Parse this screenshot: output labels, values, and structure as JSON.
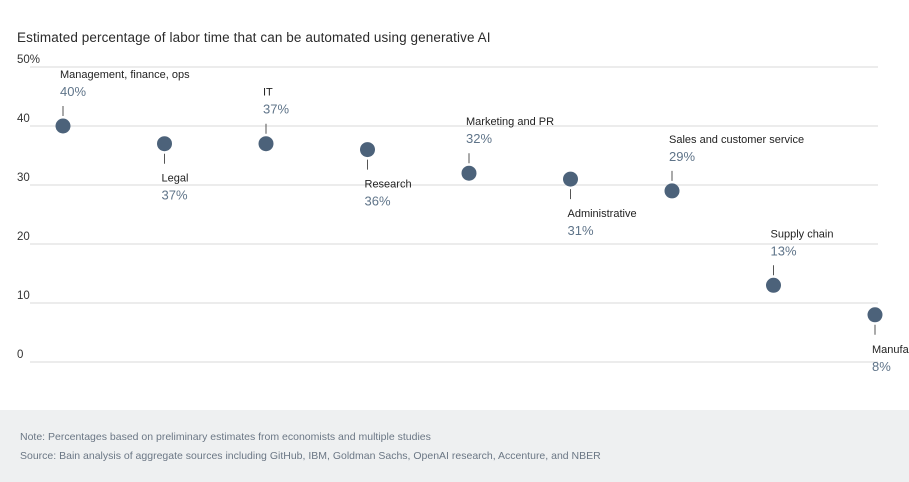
{
  "chart_data": {
    "type": "scatter",
    "title": "Estimated percentage of labor time that can be automated using generative AI",
    "xlabel": "",
    "ylabel": "",
    "ylim": [
      0,
      50
    ],
    "y_ticks": [
      "0",
      "10",
      "20",
      "30",
      "40",
      "50%"
    ],
    "grid": true,
    "points": [
      {
        "category": "Management, finance, ops",
        "value": 40,
        "label": "40%",
        "label_position": "above"
      },
      {
        "category": "Legal",
        "value": 37,
        "label": "37%",
        "label_position": "below"
      },
      {
        "category": "IT",
        "value": 37,
        "label": "37%",
        "label_position": "above"
      },
      {
        "category": "Research",
        "value": 36,
        "label": "36%",
        "label_position": "below"
      },
      {
        "category": "Marketing and PR",
        "value": 32,
        "label": "32%",
        "label_position": "above"
      },
      {
        "category": "Administrative",
        "value": 31,
        "label": "31%",
        "label_position": "below"
      },
      {
        "category": "Sales and customer service",
        "value": 29,
        "label": "29%",
        "label_position": "above"
      },
      {
        "category": "Supply chain",
        "value": 13,
        "label": "13%",
        "label_position": "above"
      },
      {
        "category": "Manufacturing",
        "value": 8,
        "label": "8%",
        "label_position": "below"
      }
    ],
    "colors": {
      "marker": "#4c627a",
      "value_text": "#5f7489",
      "grid": "#d9d9d9"
    }
  },
  "footer": {
    "note": "Note: Percentages based on preliminary estimates from economists and multiple studies",
    "source": "Source: Bain analysis of aggregate sources including GitHub, IBM, Goldman Sachs, OpenAI research, Accenture, and NBER"
  }
}
